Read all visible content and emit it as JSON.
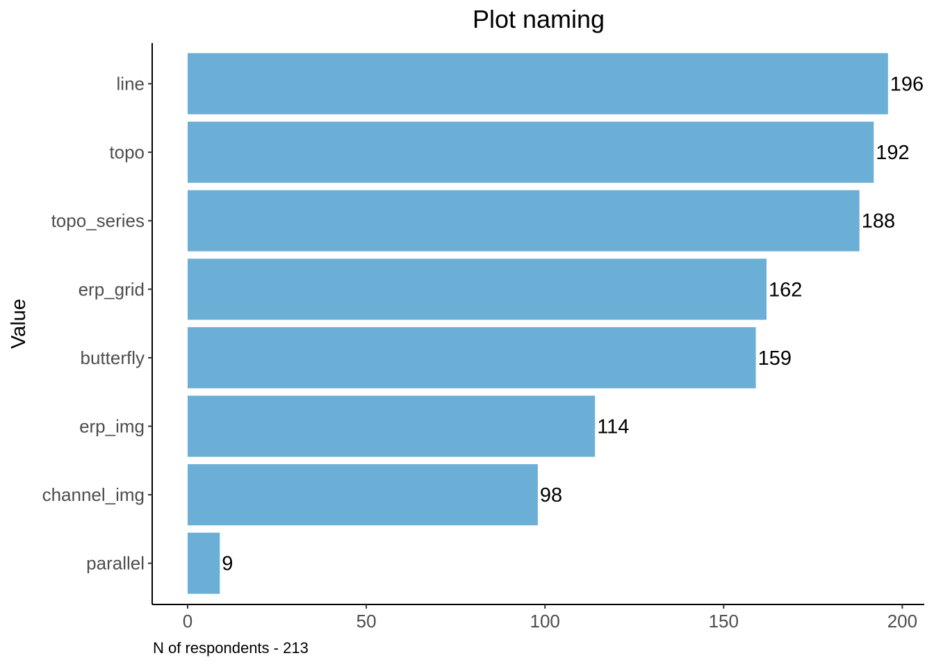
{
  "chart_data": {
    "type": "bar",
    "orientation": "horizontal",
    "title": "Plot naming",
    "xlabel": "",
    "ylabel": "Value",
    "caption": "N of respondents - 213",
    "categories": [
      "line",
      "topo",
      "topo_series",
      "erp_grid",
      "butterfly",
      "erp_img",
      "channel_img",
      "parallel"
    ],
    "values": [
      196,
      192,
      188,
      162,
      159,
      114,
      98,
      9
    ],
    "data_labels": [
      "196",
      "192",
      "188",
      "162",
      "159",
      "114",
      "98",
      "9"
    ],
    "xlim": [
      0,
      205
    ],
    "x_ticks": [
      0,
      50,
      100,
      150,
      200
    ],
    "x_tick_labels": [
      "0",
      "50",
      "100",
      "150",
      "200"
    ],
    "grid": false,
    "legend": "none",
    "bar_color": "#6baed6"
  }
}
